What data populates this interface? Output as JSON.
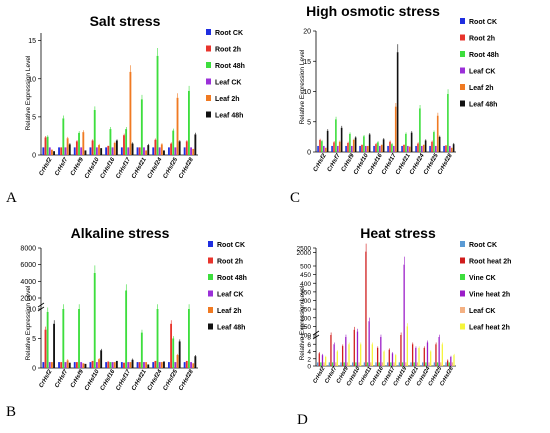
{
  "chart_data": [
    {
      "type": "bar",
      "panel_letter": "A",
      "title": "Salt stress",
      "ylabel": "Relative Expression Level",
      "xlabel": "",
      "categories": [
        "CrHsf2",
        "CrHsf7",
        "CrHsf9",
        "CrHsf10",
        "CrHsf16",
        "CrHsf17",
        "CrHsf21",
        "CrHsf24",
        "CrHsf25",
        "CrHsf28"
      ],
      "yticks": [
        0,
        5,
        10,
        15
      ],
      "ylim": [
        0,
        16
      ],
      "legend_position": "right",
      "series": [
        {
          "name": "Root CK",
          "color": "#1f2ee0",
          "values": [
            1,
            1,
            1,
            1,
            1,
            1,
            1,
            1,
            1,
            1
          ]
        },
        {
          "name": "Root 2h",
          "color": "#e8342c",
          "values": [
            2.3,
            1.0,
            1.8,
            1.9,
            1.2,
            2.6,
            1.0,
            2.0,
            1.5,
            1.8
          ]
        },
        {
          "name": "Root 48h",
          "color": "#3dde3d",
          "values": [
            2.4,
            4.8,
            2.9,
            5.9,
            3.4,
            3.4,
            7.3,
            13.0,
            3.2,
            8.4
          ]
        },
        {
          "name": "Leaf CK",
          "color": "#9b30d8",
          "values": [
            1,
            1,
            1,
            1,
            1,
            1,
            1,
            1,
            1,
            1
          ]
        },
        {
          "name": "Leaf 2h",
          "color": "#f07a22",
          "values": [
            0.7,
            2.2,
            3.0,
            1.3,
            1.6,
            10.9,
            0.6,
            1.4,
            7.5,
            0.8
          ]
        },
        {
          "name": "Leaf 48h",
          "color": "#111111",
          "values": [
            0.5,
            1.4,
            0.6,
            0.9,
            1.9,
            1.5,
            1.3,
            0.6,
            1.8,
            2.7
          ]
        }
      ]
    },
    {
      "type": "bar",
      "panel_letter": "C",
      "title": "High osmotic stress",
      "ylabel": "Relative Expression Level",
      "xlabel": "",
      "categories": [
        "CrHsf2",
        "CrHsf7",
        "CrHsf9",
        "CrHsf10",
        "CrHsf16",
        "CrHsf17",
        "CrHsf21",
        "CrHsf24",
        "CrHsf25",
        "CrHsf28"
      ],
      "yticks": [
        0,
        5,
        10,
        15,
        20
      ],
      "ylim": [
        0,
        20
      ],
      "legend_position": "right",
      "series": [
        {
          "name": "Root CK",
          "color": "#1f2ee0",
          "values": [
            1,
            1,
            1,
            1,
            1,
            1,
            1,
            1,
            1,
            1
          ]
        },
        {
          "name": "Root 2h",
          "color": "#e8342c",
          "values": [
            2.0,
            1.6,
            1.5,
            1.2,
            1.3,
            1.7,
            1.2,
            1.4,
            1.7,
            1.1
          ]
        },
        {
          "name": "Root 48h",
          "color": "#3dde3d",
          "values": [
            1.8,
            5.4,
            3.0,
            2.6,
            1.6,
            1.3,
            3.0,
            7.2,
            3.3,
            9.6
          ]
        },
        {
          "name": "Leaf CK",
          "color": "#9b30d8",
          "values": [
            1,
            1,
            1,
            1,
            1,
            1,
            1,
            1,
            1,
            1
          ]
        },
        {
          "name": "Leaf 2h",
          "color": "#f07a22",
          "values": [
            0.7,
            1.7,
            2.0,
            1.0,
            1.2,
            7.5,
            0.9,
            1.2,
            6.0,
            0.7
          ]
        },
        {
          "name": "Leaf 48h",
          "color": "#111111",
          "values": [
            3.5,
            4.0,
            2.4,
            2.9,
            2.1,
            16.5,
            3.2,
            1.9,
            2.5,
            1.3
          ]
        }
      ]
    },
    {
      "type": "bar",
      "panel_letter": "B",
      "title": "Alkaline stress",
      "ylabel": "Relative Expression Level",
      "xlabel": "",
      "categories": [
        "CrHsf2",
        "CrHsf7",
        "CrHsf9",
        "CrHsf10",
        "CrHsf16",
        "CrHsf17",
        "CrHsf21",
        "CrHsf24",
        "CrHsf25",
        "CrHsf28"
      ],
      "yticks": [
        0,
        5,
        10,
        2000,
        4000,
        6000,
        8000
      ],
      "axis_break": {
        "lower": [
          0,
          10
        ],
        "upper": [
          2000,
          8000
        ]
      },
      "legend_position": "right",
      "series": [
        {
          "name": "Root CK",
          "color": "#1f2ee0",
          "values": [
            1,
            1,
            1,
            1,
            1,
            1,
            1,
            1,
            1,
            1
          ]
        },
        {
          "name": "Root 2h",
          "color": "#e8342c",
          "values": [
            6.5,
            1.0,
            1.0,
            1.2,
            1.1,
            0.9,
            1.0,
            1.2,
            7.5,
            1.2
          ]
        },
        {
          "name": "Root 48h",
          "color": "#3dde3d",
          "values": [
            9.5,
            12.5,
            10.0,
            5000,
            1.0,
            2900,
            6.0,
            10.0,
            5.0,
            10.0
          ]
        },
        {
          "name": "Leaf CK",
          "color": "#9b30d8",
          "values": [
            1,
            1,
            1,
            1,
            1,
            1,
            1,
            1,
            1,
            1
          ]
        },
        {
          "name": "Leaf 2h",
          "color": "#f07a22",
          "values": [
            1.0,
            1.3,
            0.8,
            1.5,
            1.0,
            1.0,
            1.0,
            1.0,
            2.2,
            0.8
          ]
        },
        {
          "name": "Leaf 48h",
          "color": "#111111",
          "values": [
            7.5,
            0.9,
            0.7,
            3.0,
            1.2,
            1.4,
            0.6,
            1.1,
            4.5,
            2.0
          ]
        }
      ]
    },
    {
      "type": "bar",
      "panel_letter": "D",
      "title": "Heat stress",
      "ylabel": "Relative Expression Level",
      "xlabel": "",
      "categories": [
        "CrHsf2",
        "CrHsf7",
        "CrHsf9",
        "CrHsf10",
        "CrHsf11",
        "CrHsf16",
        "CrHsf17",
        "CrHsf19",
        "CrHsf21",
        "CrHsf24",
        "CrHsf25",
        "CrHsf28"
      ],
      "yticks": [
        0,
        2,
        4,
        6,
        8,
        100,
        150,
        200,
        250,
        300,
        350,
        400,
        450,
        500,
        2000,
        2500
      ],
      "axis_break": {
        "lower": [
          0,
          8
        ],
        "upper": [
          100,
          2500
        ]
      },
      "legend_position": "right",
      "series": [
        {
          "name": "Root CK",
          "color": "#5b9bd5",
          "values": [
            1,
            1,
            1,
            1,
            1,
            1,
            1,
            1,
            1,
            1,
            1,
            1
          ]
        },
        {
          "name": "Root heat 2h",
          "color": "#d01c1c",
          "values": [
            3.5,
            100,
            5.5,
            130,
            2100,
            5.0,
            4.5,
            100,
            6.0,
            5.0,
            6.0,
            1.5
          ]
        },
        {
          "name": "Vine CK",
          "color": "#3dde3d",
          "values": [
            1,
            1,
            1,
            1,
            1,
            1,
            1,
            1,
            1,
            1,
            1,
            1
          ]
        },
        {
          "name": "Vine heat 2h",
          "color": "#9b1dc8",
          "values": [
            3.0,
            6.0,
            90,
            120,
            180,
            8.0,
            3.5,
            650,
            5.0,
            6.5,
            90,
            2.5
          ]
        },
        {
          "name": "Leaf CK",
          "color": "#f4b183",
          "values": [
            1,
            1,
            1,
            1,
            1,
            1,
            1,
            1,
            1,
            1,
            1,
            1
          ]
        },
        {
          "name": "Leaf heat 2h",
          "color": "#f5f53a",
          "values": [
            2.5,
            4.0,
            6.0,
            6.0,
            6.0,
            4.0,
            3.0,
            150,
            5.0,
            4.0,
            6.0,
            3.0
          ]
        }
      ]
    }
  ]
}
